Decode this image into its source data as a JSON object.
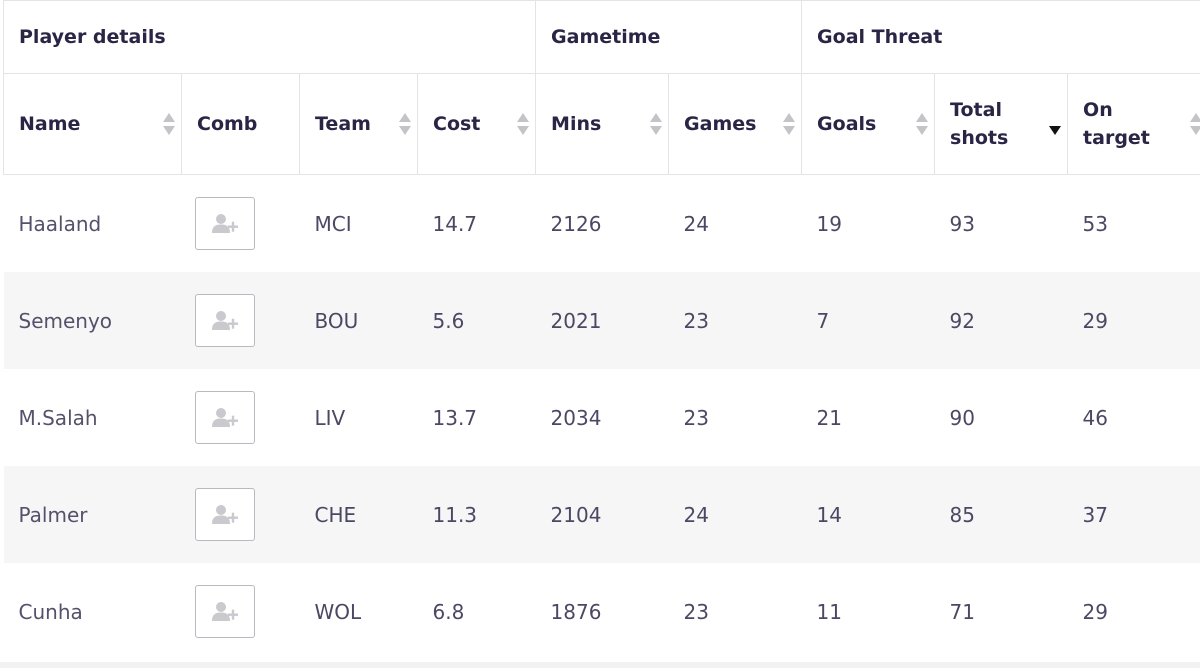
{
  "groups": {
    "player_details": "Player details",
    "gametime": "Gametime",
    "goal_threat": "Goal Threat"
  },
  "columns": {
    "name": "Name",
    "comb": "Comb",
    "team": "Team",
    "cost": "Cost",
    "mins": "Mins",
    "games": "Games",
    "goals": "Goals",
    "total_shots_1": "Total",
    "total_shots_2": "shots",
    "on_target_1": "On",
    "on_target_2": "target"
  },
  "sort": {
    "active_column": "total_shots",
    "direction": "descending"
  },
  "icons": {
    "sort": "sort-icon",
    "add_player": "add-user-icon"
  },
  "rows": [
    {
      "name": "Haaland",
      "team": "MCI",
      "cost": "14.7",
      "mins": "2126",
      "games": "24",
      "goals": "19",
      "total_shots": "93",
      "on_target": "53"
    },
    {
      "name": "Semenyo",
      "team": "BOU",
      "cost": "5.6",
      "mins": "2021",
      "games": "23",
      "goals": "7",
      "total_shots": "92",
      "on_target": "29"
    },
    {
      "name": "M.Salah",
      "team": "LIV",
      "cost": "13.7",
      "mins": "2034",
      "games": "23",
      "goals": "21",
      "total_shots": "90",
      "on_target": "46"
    },
    {
      "name": "Palmer",
      "team": "CHE",
      "cost": "11.3",
      "mins": "2104",
      "games": "24",
      "goals": "14",
      "total_shots": "85",
      "on_target": "37"
    },
    {
      "name": "Cunha",
      "team": "WOL",
      "cost": "6.8",
      "mins": "1876",
      "games": "23",
      "goals": "11",
      "total_shots": "71",
      "on_target": "29"
    }
  ],
  "colors": {
    "header_text": "#2a2545",
    "body_text": "#4b4864",
    "alt_row_bg": "#f6f6f7",
    "border": "#e4e4e8",
    "active_sort": "#111111",
    "inactive_sort": "#c3c3c8"
  }
}
